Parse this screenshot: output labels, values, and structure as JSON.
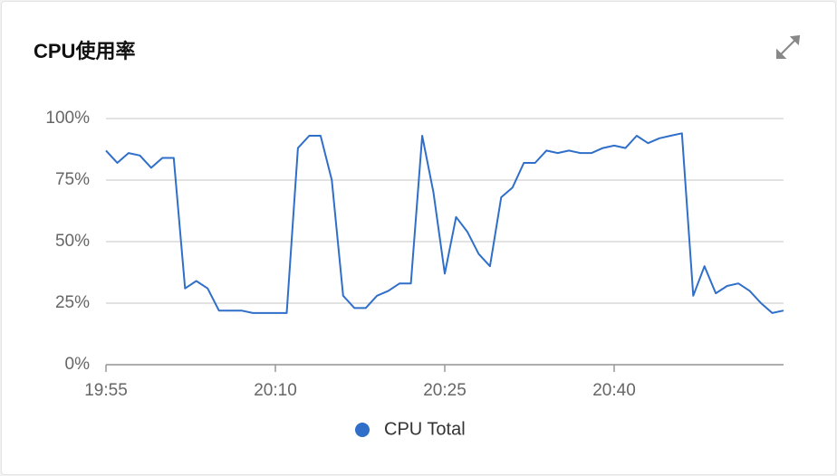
{
  "chart_data": {
    "type": "line",
    "title": "CPU使用率",
    "x": [
      "19:55",
      "19:56",
      "19:57",
      "19:58",
      "19:59",
      "20:00",
      "20:01",
      "20:02",
      "20:03",
      "20:04",
      "20:05",
      "20:06",
      "20:07",
      "20:08",
      "20:09",
      "20:10",
      "20:11",
      "20:12",
      "20:13",
      "20:14",
      "20:15",
      "20:16",
      "20:17",
      "20:18",
      "20:19",
      "20:20",
      "20:21",
      "20:22",
      "20:23",
      "20:24",
      "20:25",
      "20:26",
      "20:27",
      "20:28",
      "20:29",
      "20:30",
      "20:31",
      "20:32",
      "20:33",
      "20:34",
      "20:35",
      "20:36",
      "20:37",
      "20:38",
      "20:39",
      "20:40",
      "20:41",
      "20:42",
      "20:43",
      "20:44",
      "20:45",
      "20:46",
      "20:47",
      "20:48",
      "20:49",
      "20:50",
      "20:51",
      "20:52",
      "20:53",
      "20:54",
      "20:55"
    ],
    "series": [
      {
        "name": "CPU Total",
        "color": "#2f6fc9",
        "values": [
          87,
          82,
          86,
          85,
          80,
          84,
          84,
          31,
          34,
          31,
          22,
          22,
          22,
          21,
          21,
          21,
          21,
          88,
          93,
          93,
          75,
          28,
          23,
          23,
          28,
          30,
          33,
          33,
          93,
          70,
          37,
          60,
          54,
          45,
          40,
          68,
          72,
          82,
          82,
          87,
          86,
          87,
          86,
          86,
          88,
          89,
          88,
          93,
          90,
          92,
          93,
          94,
          28,
          40,
          29,
          32,
          33,
          30,
          25,
          21,
          22
        ]
      }
    ],
    "xlim": [
      "19:55",
      "20:55"
    ],
    "xticks": [
      "19:55",
      "20:10",
      "20:25",
      "20:40"
    ],
    "ylim": [
      0,
      100
    ],
    "yticks": [
      {
        "value": 0,
        "label": "0%"
      },
      {
        "value": 25,
        "label": "25%"
      },
      {
        "value": 50,
        "label": "50%"
      },
      {
        "value": 75,
        "label": "75%"
      },
      {
        "value": 100,
        "label": "100%"
      }
    ],
    "grid": true,
    "legend": "bottom"
  }
}
